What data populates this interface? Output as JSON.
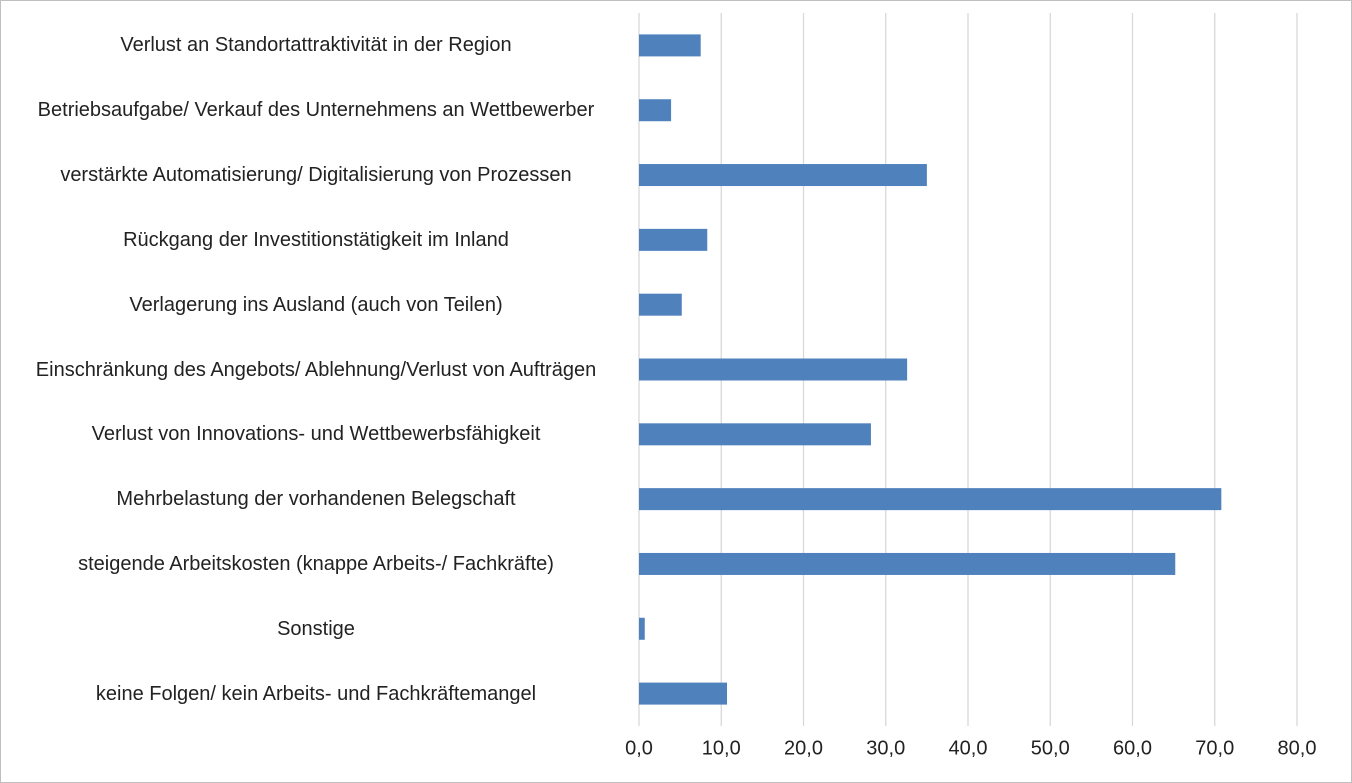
{
  "chart_data": {
    "type": "hbar",
    "categories": [
      "Verlust an Standortattraktivität in der Region",
      "Betriebsaufgabe/ Verkauf des Unternehmens an Wettbewerber",
      "verstärkte Automatisierung/ Digitalisierung von Prozessen",
      "Rückgang der Investitionstätigkeit im Inland",
      "Verlagerung ins Ausland (auch von Teilen)",
      "Einschränkung des Angebots/ Ablehnung/Verlust von Aufträgen",
      "Verlust von Innovations- und Wettbewerbsfähigkeit",
      "Mehrbelastung der vorhandenen Belegschaft",
      "steigende Arbeitskosten (knappe Arbeits-/ Fachkräfte)",
      "Sonstige",
      "keine Folgen/ kein Arbeits- und Fachkräftemangel"
    ],
    "values": [
      7.5,
      3.9,
      35.0,
      8.3,
      5.2,
      32.6,
      28.2,
      70.8,
      65.2,
      0.7,
      10.7
    ],
    "color": "#4f81bd",
    "xlim": [
      0,
      80
    ],
    "xticks": [
      {
        "value": 0,
        "label": "0,0"
      },
      {
        "value": 10,
        "label": "10,0"
      },
      {
        "value": 20,
        "label": "20,0"
      },
      {
        "value": 30,
        "label": "30,0"
      },
      {
        "value": 40,
        "label": "40,0"
      },
      {
        "value": 50,
        "label": "50,0"
      },
      {
        "value": 60,
        "label": "60,0"
      },
      {
        "value": 70,
        "label": "70,0"
      },
      {
        "value": 80,
        "label": "80,0"
      }
    ],
    "grid": true
  }
}
